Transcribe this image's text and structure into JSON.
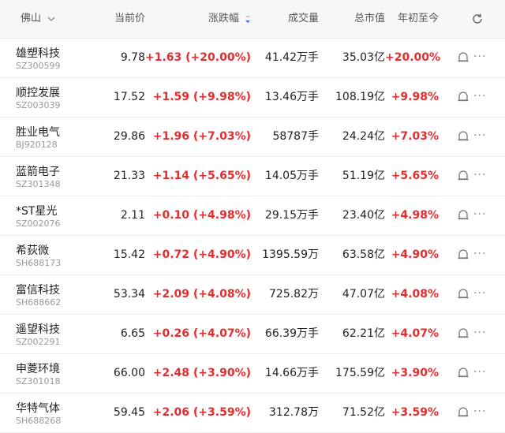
{
  "header": {
    "region": "佛山",
    "price": "当前价",
    "change": "涨跌幅",
    "volume": "成交量",
    "market_cap": "总市值",
    "ytd": "年初至今"
  },
  "rows": [
    {
      "name": "雄塑科技",
      "code": "SZ300599",
      "price": "9.78",
      "change": "+1.63 (+20.00%)",
      "volume": "41.42万手",
      "market_cap": "35.03亿",
      "ytd": "+20.00%"
    },
    {
      "name": "顺控发展",
      "code": "SZ003039",
      "price": "17.52",
      "change": "+1.59 (+9.98%)",
      "volume": "13.46万手",
      "market_cap": "108.19亿",
      "ytd": "+9.98%"
    },
    {
      "name": "胜业电气",
      "code": "BJ920128",
      "price": "29.86",
      "change": "+1.96 (+7.03%)",
      "volume": "58787手",
      "market_cap": "24.24亿",
      "ytd": "+7.03%"
    },
    {
      "name": "蓝箭电子",
      "code": "SZ301348",
      "price": "21.33",
      "change": "+1.14 (+5.65%)",
      "volume": "14.05万手",
      "market_cap": "51.19亿",
      "ytd": "+5.65%"
    },
    {
      "name": "*ST星光",
      "code": "SZ002076",
      "price": "2.11",
      "change": "+0.10 (+4.98%)",
      "volume": "29.15万手",
      "market_cap": "23.40亿",
      "ytd": "+4.98%"
    },
    {
      "name": "希荻微",
      "code": "SH688173",
      "price": "15.42",
      "change": "+0.72 (+4.90%)",
      "volume": "1395.59万",
      "market_cap": "63.58亿",
      "ytd": "+4.90%"
    },
    {
      "name": "富信科技",
      "code": "SH688662",
      "price": "53.34",
      "change": "+2.09 (+4.08%)",
      "volume": "725.82万",
      "market_cap": "47.07亿",
      "ytd": "+4.08%"
    },
    {
      "name": "遥望科技",
      "code": "SZ002291",
      "price": "6.65",
      "change": "+0.26 (+4.07%)",
      "volume": "66.39万手",
      "market_cap": "62.21亿",
      "ytd": "+4.07%"
    },
    {
      "name": "申菱环境",
      "code": "SZ301018",
      "price": "66.00",
      "change": "+2.48 (+3.90%)",
      "volume": "14.66万手",
      "market_cap": "175.59亿",
      "ytd": "+3.90%"
    },
    {
      "name": "华特气体",
      "code": "SH688268",
      "price": "59.45",
      "change": "+2.06 (+3.59%)",
      "volume": "312.78万",
      "market_cap": "71.52亿",
      "ytd": "+3.59%"
    }
  ],
  "icons": {
    "refresh": "refresh-icon",
    "alert": "bell-icon",
    "more": "more-icon",
    "dropdown": "chevron-down-icon",
    "sort": "sort-desc-icon",
    "more_glyph": "···"
  },
  "colors": {
    "up": "#e62c2c",
    "sort_active": "#3b6fd8"
  }
}
